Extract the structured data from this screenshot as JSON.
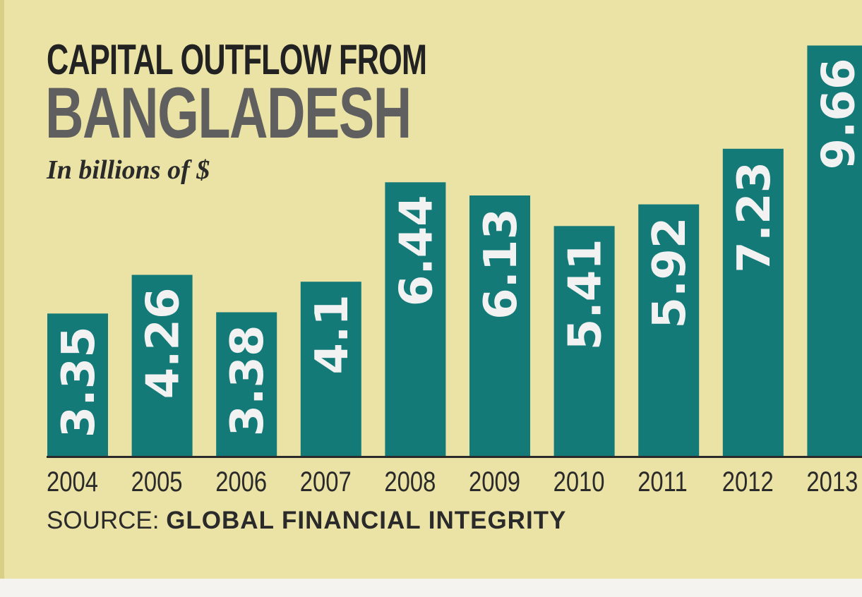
{
  "colors": {
    "background": "#ebe3a6",
    "bar": "#137a78",
    "bar_label": "#f2f2f2",
    "axis": "#2a2a2a",
    "title": "#222222",
    "title_country": "#5f5f5f"
  },
  "title": {
    "line1": "CAPITAL OUTFLOW FROM",
    "line2": "BANGLADESH"
  },
  "subtitle": "In billions of $",
  "source": {
    "label": "SOURCE: ",
    "value": "GLOBAL FINANCIAL INTEGRITY"
  },
  "chart_data": {
    "type": "bar",
    "title": "CAPITAL OUTFLOW FROM BANGLADESH",
    "subtitle": "In billions of $",
    "xlabel": "",
    "ylabel": "",
    "categories": [
      "2004",
      "2005",
      "2006",
      "2007",
      "2008",
      "2009",
      "2010",
      "2011",
      "2012",
      "2013"
    ],
    "values": [
      3.35,
      4.26,
      3.38,
      4.1,
      6.44,
      6.13,
      5.41,
      5.92,
      7.23,
      9.66
    ],
    "value_labels": [
      "3.35",
      "4.26",
      "3.38",
      "4.1",
      "6.44",
      "6.13",
      "5.41",
      "5.92",
      "7.23",
      "9.66"
    ],
    "ylim": [
      0,
      10
    ],
    "grid": false,
    "legend": "none",
    "value_label_orientation": "vertical"
  }
}
